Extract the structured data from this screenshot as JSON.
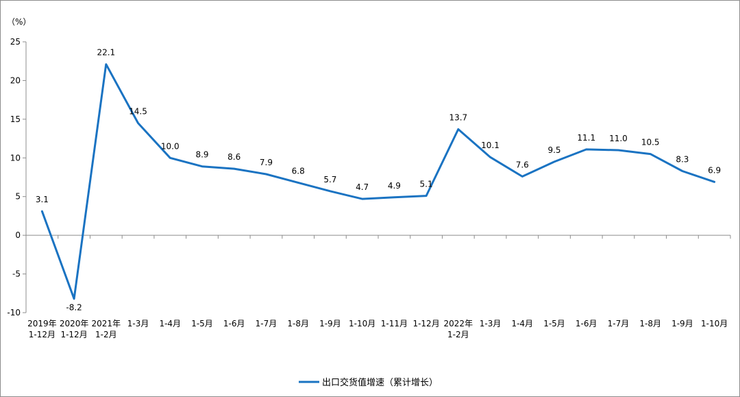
{
  "chart_data": {
    "type": "line",
    "unit_label": "（%）",
    "categories": [
      [
        "2019年",
        "1-12月"
      ],
      [
        "2020年",
        "1-12月"
      ],
      [
        "2021年",
        "1-2月"
      ],
      [
        "1-3月"
      ],
      [
        "1-4月"
      ],
      [
        "1-5月"
      ],
      [
        "1-6月"
      ],
      [
        "1-7月"
      ],
      [
        "1-8月"
      ],
      [
        "1-9月"
      ],
      [
        "1-10月"
      ],
      [
        "1-11月"
      ],
      [
        "1-12月"
      ],
      [
        "2022年",
        "1-2月"
      ],
      [
        "1-3月"
      ],
      [
        "1-4月"
      ],
      [
        "1-5月"
      ],
      [
        "1-6月"
      ],
      [
        "1-7月"
      ],
      [
        "1-8月"
      ],
      [
        "1-9月"
      ],
      [
        "1-10月"
      ]
    ],
    "series": [
      {
        "name": "出口交货值增速（累计增长）",
        "color": "#1a73c2",
        "values": [
          3.1,
          -8.2,
          22.1,
          14.5,
          10.0,
          8.9,
          8.6,
          7.9,
          6.8,
          5.7,
          4.7,
          4.9,
          5.1,
          13.7,
          10.1,
          7.6,
          9.5,
          11.1,
          11.0,
          10.5,
          8.3,
          6.9
        ],
        "labels": [
          "3.1",
          "-8.2",
          "22.1",
          "14.5",
          "10.0",
          "8.9",
          "8.6",
          "7.9",
          "6.8",
          "5.7",
          "4.7",
          "4.9",
          "5.1",
          "13.7",
          "10.1",
          "7.6",
          "9.5",
          "11.1",
          "11.0",
          "10.5",
          "8.3",
          "6.9"
        ]
      }
    ],
    "ylim": [
      -10,
      25
    ],
    "yticks": [
      25,
      20,
      15,
      10,
      5,
      0,
      -5,
      -10
    ],
    "grid": false,
    "legend": "bottom-center"
  }
}
